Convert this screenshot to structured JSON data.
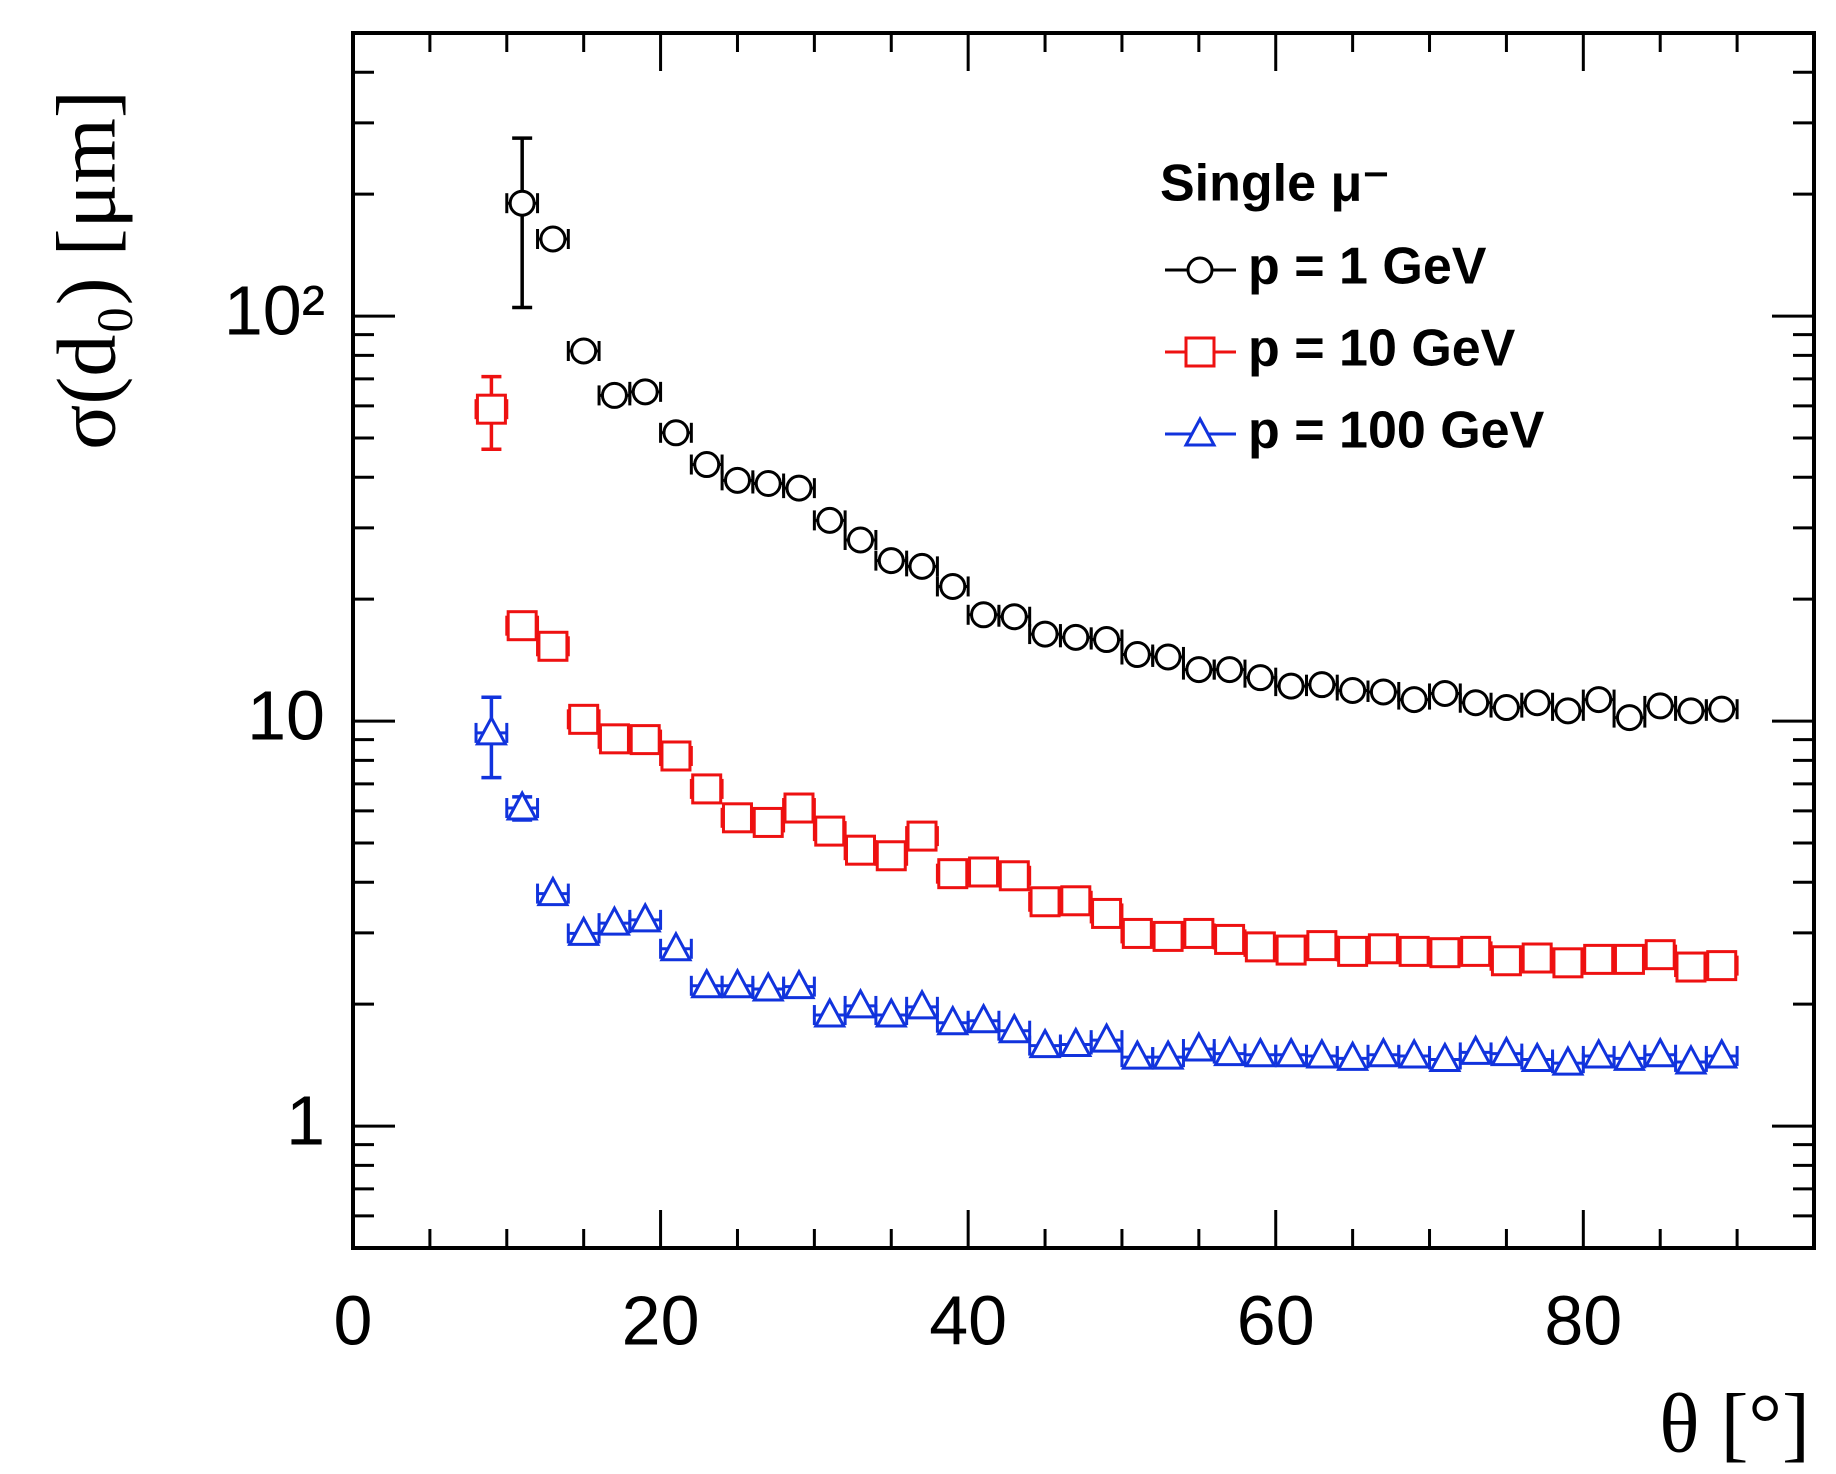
{
  "chart_data": {
    "type": "scatter",
    "xlabel": "θ [°]",
    "ylabel": "σ(d₀) [μm]",
    "legend_title": "Single μ⁻",
    "legend": "upper right",
    "xlim": [
      0,
      95
    ],
    "xticks": [
      0,
      20,
      40,
      60,
      80
    ],
    "xminorticks": [
      5,
      10,
      15,
      25,
      30,
      35,
      45,
      50,
      55,
      65,
      70,
      75,
      85,
      90
    ],
    "ylim": [
      0.5,
      500
    ],
    "log_y": true,
    "yticks": [
      1,
      10,
      {
        "value": 100,
        "label": "10²"
      }
    ],
    "yminorticks": [
      0.5,
      0.6,
      0.7,
      0.8,
      0.9,
      2,
      3,
      4,
      5,
      6,
      7,
      8,
      9,
      20,
      30,
      40,
      50,
      60,
      70,
      80,
      90,
      200,
      300,
      400,
      500
    ],
    "x_error": 1,
    "series": [
      {
        "name": "p = 1 GeV",
        "color": "#000000",
        "marker": "circle",
        "x": [
          11,
          13,
          15,
          17,
          19,
          21,
          23,
          25,
          27,
          29,
          31,
          33,
          35,
          37,
          39,
          41,
          43,
          45,
          47,
          49,
          51,
          53,
          55,
          57,
          59,
          61,
          63,
          65,
          67,
          69,
          71,
          73,
          75,
          77,
          79,
          81,
          83,
          85,
          87,
          89
        ],
        "values": [
          190,
          155,
          82,
          63.7,
          65,
          51.5,
          43,
          39.3,
          38.6,
          37.6,
          31.3,
          28,
          24.9,
          24.1,
          21.5,
          18.3,
          18.1,
          16.4,
          16.1,
          15.9,
          14.6,
          14.4,
          13.4,
          13.4,
          12.8,
          12.2,
          12.3,
          11.9,
          11.8,
          11.3,
          11.7,
          11.1,
          10.8,
          11.1,
          10.6,
          11.3,
          10.2,
          10.9,
          10.6,
          10.7
        ],
        "errors": [
          85,
          null,
          null,
          null,
          null,
          null,
          null,
          null,
          null,
          null,
          null,
          null,
          null,
          null,
          null,
          null,
          null,
          null,
          null,
          null,
          null,
          null,
          null,
          null,
          null,
          null,
          null,
          null,
          null,
          null,
          null,
          null,
          null,
          null,
          null,
          null,
          null,
          null,
          null,
          null
        ]
      },
      {
        "name": "p = 10 GeV",
        "color": "#ee1111",
        "marker": "square",
        "x": [
          9,
          11,
          13,
          15,
          17,
          19,
          21,
          23,
          25,
          27,
          29,
          31,
          33,
          35,
          37,
          39,
          41,
          43,
          45,
          47,
          49,
          51,
          53,
          55,
          57,
          59,
          61,
          63,
          65,
          67,
          69,
          71,
          73,
          75,
          77,
          79,
          81,
          83,
          85,
          87,
          89
        ],
        "values": [
          58.9,
          17.2,
          15.3,
          10.1,
          9.04,
          9.0,
          8.2,
          6.8,
          5.77,
          5.62,
          6.1,
          5.35,
          4.8,
          4.65,
          5.2,
          4.2,
          4.24,
          4.15,
          3.58,
          3.6,
          3.35,
          2.99,
          2.94,
          2.99,
          2.89,
          2.77,
          2.72,
          2.79,
          2.7,
          2.74,
          2.7,
          2.68,
          2.7,
          2.56,
          2.6,
          2.53,
          2.58,
          2.58,
          2.65,
          2.47,
          2.49
        ],
        "errors": [
          12,
          null,
          null,
          null,
          null,
          null,
          null,
          null,
          null,
          null,
          null,
          null,
          null,
          null,
          null,
          null,
          null,
          null,
          null,
          null,
          null,
          null,
          null,
          null,
          null,
          null,
          null,
          null,
          null,
          null,
          null,
          null,
          null,
          null,
          null,
          null,
          null,
          null,
          null,
          null,
          null
        ]
      },
      {
        "name": "p = 100 GeV",
        "color": "#1133dd",
        "marker": "triangle",
        "x": [
          9,
          11,
          13,
          15,
          17,
          19,
          21,
          23,
          25,
          27,
          29,
          31,
          33,
          35,
          37,
          39,
          41,
          43,
          45,
          47,
          49,
          51,
          53,
          55,
          57,
          59,
          61,
          63,
          65,
          67,
          69,
          71,
          73,
          75,
          77,
          79,
          81,
          83,
          85,
          87,
          89
        ],
        "values": [
          9.35,
          6.1,
          3.75,
          2.99,
          3.17,
          3.23,
          2.74,
          2.22,
          2.22,
          2.18,
          2.21,
          1.88,
          1.98,
          1.88,
          1.97,
          1.8,
          1.82,
          1.72,
          1.58,
          1.59,
          1.63,
          1.48,
          1.48,
          1.55,
          1.51,
          1.5,
          1.5,
          1.49,
          1.47,
          1.5,
          1.49,
          1.46,
          1.52,
          1.51,
          1.46,
          1.43,
          1.49,
          1.47,
          1.5,
          1.44,
          1.49
        ],
        "errors": [
          2.1,
          0.4,
          null,
          null,
          null,
          null,
          null,
          null,
          null,
          null,
          null,
          null,
          null,
          null,
          null,
          null,
          null,
          null,
          null,
          null,
          null,
          null,
          null,
          null,
          null,
          null,
          null,
          null,
          null,
          null,
          null,
          null,
          null,
          null,
          null,
          null,
          null,
          null,
          null,
          null,
          null
        ]
      }
    ]
  }
}
